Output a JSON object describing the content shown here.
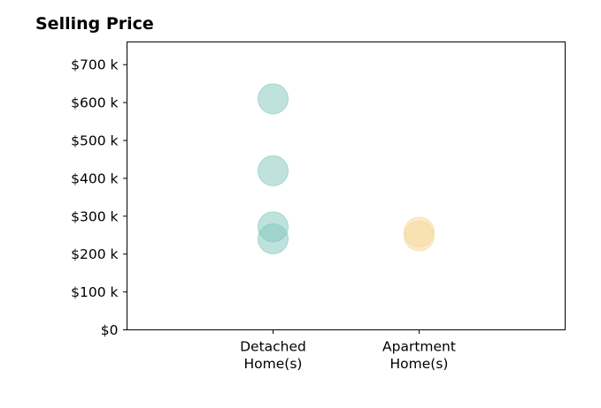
{
  "chart_data": {
    "type": "scatter",
    "title": "Selling Price",
    "xlabel": "",
    "ylabel": "",
    "categories": [
      "Detached\nHome(s)",
      "Apartment\nHome(s)"
    ],
    "x_range": [
      0,
      3
    ],
    "ylim": [
      0,
      760000
    ],
    "y_ticks": [
      {
        "value": 0,
        "label": "$0"
      },
      {
        "value": 100000,
        "label": "$100 k"
      },
      {
        "value": 200000,
        "label": "$200 k"
      },
      {
        "value": 300000,
        "label": "$300 k"
      },
      {
        "value": 400000,
        "label": "$400 k"
      },
      {
        "value": 500000,
        "label": "$500 k"
      },
      {
        "value": 600000,
        "label": "$600 k"
      },
      {
        "value": 700000,
        "label": "$700 k"
      }
    ],
    "grid": false,
    "legend": "none",
    "series": [
      {
        "category": "Detached\nHome(s)",
        "color": "#7fc6bc",
        "values": [
          610000,
          420000,
          272000,
          240000
        ]
      },
      {
        "category": "Apartment\nHome(s)",
        "color": "#f5d89a",
        "values": [
          258000,
          248000
        ]
      }
    ]
  }
}
